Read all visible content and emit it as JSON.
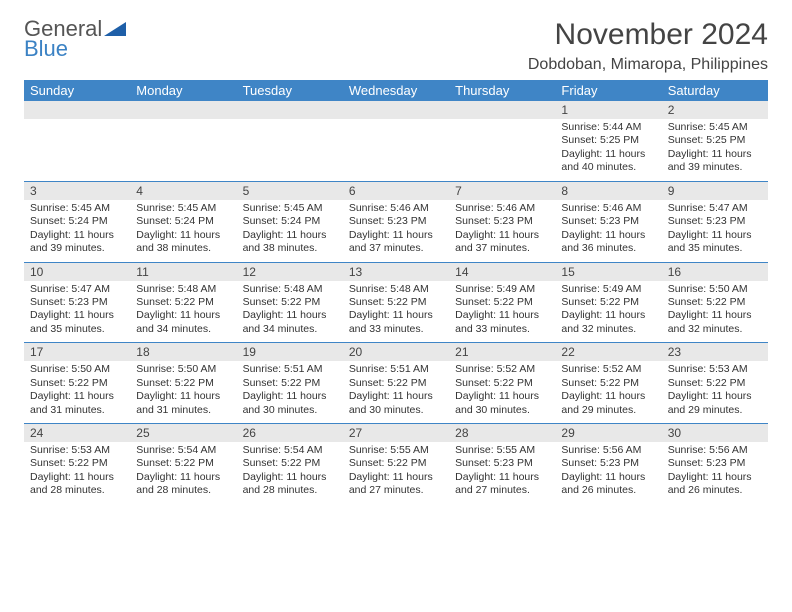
{
  "colors": {
    "header_bg": "#3f85c6",
    "header_text": "#ffffff",
    "daynum_bg": "#e8e8e8",
    "border": "#3f85c6",
    "logo_gray": "#555555",
    "logo_blue": "#3b82c4",
    "text": "#333333",
    "title": "#444444"
  },
  "fonts": {
    "family": "Arial",
    "title_size": 30,
    "subtitle_size": 16,
    "dayheader_size": 13,
    "daynum_size": 12,
    "detail_size": 10.5
  },
  "logo": {
    "line1": "General",
    "line2": "Blue"
  },
  "title": "November 2024",
  "subtitle": "Dobdoban, Mimaropa, Philippines",
  "day_names": [
    "Sunday",
    "Monday",
    "Tuesday",
    "Wednesday",
    "Thursday",
    "Friday",
    "Saturday"
  ],
  "weeks": [
    [
      {
        "num": "",
        "sunrise": "",
        "sunset": "",
        "daylight": ""
      },
      {
        "num": "",
        "sunrise": "",
        "sunset": "",
        "daylight": ""
      },
      {
        "num": "",
        "sunrise": "",
        "sunset": "",
        "daylight": ""
      },
      {
        "num": "",
        "sunrise": "",
        "sunset": "",
        "daylight": ""
      },
      {
        "num": "",
        "sunrise": "",
        "sunset": "",
        "daylight": ""
      },
      {
        "num": "1",
        "sunrise": "Sunrise: 5:44 AM",
        "sunset": "Sunset: 5:25 PM",
        "daylight": "Daylight: 11 hours and 40 minutes."
      },
      {
        "num": "2",
        "sunrise": "Sunrise: 5:45 AM",
        "sunset": "Sunset: 5:25 PM",
        "daylight": "Daylight: 11 hours and 39 minutes."
      }
    ],
    [
      {
        "num": "3",
        "sunrise": "Sunrise: 5:45 AM",
        "sunset": "Sunset: 5:24 PM",
        "daylight": "Daylight: 11 hours and 39 minutes."
      },
      {
        "num": "4",
        "sunrise": "Sunrise: 5:45 AM",
        "sunset": "Sunset: 5:24 PM",
        "daylight": "Daylight: 11 hours and 38 minutes."
      },
      {
        "num": "5",
        "sunrise": "Sunrise: 5:45 AM",
        "sunset": "Sunset: 5:24 PM",
        "daylight": "Daylight: 11 hours and 38 minutes."
      },
      {
        "num": "6",
        "sunrise": "Sunrise: 5:46 AM",
        "sunset": "Sunset: 5:23 PM",
        "daylight": "Daylight: 11 hours and 37 minutes."
      },
      {
        "num": "7",
        "sunrise": "Sunrise: 5:46 AM",
        "sunset": "Sunset: 5:23 PM",
        "daylight": "Daylight: 11 hours and 37 minutes."
      },
      {
        "num": "8",
        "sunrise": "Sunrise: 5:46 AM",
        "sunset": "Sunset: 5:23 PM",
        "daylight": "Daylight: 11 hours and 36 minutes."
      },
      {
        "num": "9",
        "sunrise": "Sunrise: 5:47 AM",
        "sunset": "Sunset: 5:23 PM",
        "daylight": "Daylight: 11 hours and 35 minutes."
      }
    ],
    [
      {
        "num": "10",
        "sunrise": "Sunrise: 5:47 AM",
        "sunset": "Sunset: 5:23 PM",
        "daylight": "Daylight: 11 hours and 35 minutes."
      },
      {
        "num": "11",
        "sunrise": "Sunrise: 5:48 AM",
        "sunset": "Sunset: 5:22 PM",
        "daylight": "Daylight: 11 hours and 34 minutes."
      },
      {
        "num": "12",
        "sunrise": "Sunrise: 5:48 AM",
        "sunset": "Sunset: 5:22 PM",
        "daylight": "Daylight: 11 hours and 34 minutes."
      },
      {
        "num": "13",
        "sunrise": "Sunrise: 5:48 AM",
        "sunset": "Sunset: 5:22 PM",
        "daylight": "Daylight: 11 hours and 33 minutes."
      },
      {
        "num": "14",
        "sunrise": "Sunrise: 5:49 AM",
        "sunset": "Sunset: 5:22 PM",
        "daylight": "Daylight: 11 hours and 33 minutes."
      },
      {
        "num": "15",
        "sunrise": "Sunrise: 5:49 AM",
        "sunset": "Sunset: 5:22 PM",
        "daylight": "Daylight: 11 hours and 32 minutes."
      },
      {
        "num": "16",
        "sunrise": "Sunrise: 5:50 AM",
        "sunset": "Sunset: 5:22 PM",
        "daylight": "Daylight: 11 hours and 32 minutes."
      }
    ],
    [
      {
        "num": "17",
        "sunrise": "Sunrise: 5:50 AM",
        "sunset": "Sunset: 5:22 PM",
        "daylight": "Daylight: 11 hours and 31 minutes."
      },
      {
        "num": "18",
        "sunrise": "Sunrise: 5:50 AM",
        "sunset": "Sunset: 5:22 PM",
        "daylight": "Daylight: 11 hours and 31 minutes."
      },
      {
        "num": "19",
        "sunrise": "Sunrise: 5:51 AM",
        "sunset": "Sunset: 5:22 PM",
        "daylight": "Daylight: 11 hours and 30 minutes."
      },
      {
        "num": "20",
        "sunrise": "Sunrise: 5:51 AM",
        "sunset": "Sunset: 5:22 PM",
        "daylight": "Daylight: 11 hours and 30 minutes."
      },
      {
        "num": "21",
        "sunrise": "Sunrise: 5:52 AM",
        "sunset": "Sunset: 5:22 PM",
        "daylight": "Daylight: 11 hours and 30 minutes."
      },
      {
        "num": "22",
        "sunrise": "Sunrise: 5:52 AM",
        "sunset": "Sunset: 5:22 PM",
        "daylight": "Daylight: 11 hours and 29 minutes."
      },
      {
        "num": "23",
        "sunrise": "Sunrise: 5:53 AM",
        "sunset": "Sunset: 5:22 PM",
        "daylight": "Daylight: 11 hours and 29 minutes."
      }
    ],
    [
      {
        "num": "24",
        "sunrise": "Sunrise: 5:53 AM",
        "sunset": "Sunset: 5:22 PM",
        "daylight": "Daylight: 11 hours and 28 minutes."
      },
      {
        "num": "25",
        "sunrise": "Sunrise: 5:54 AM",
        "sunset": "Sunset: 5:22 PM",
        "daylight": "Daylight: 11 hours and 28 minutes."
      },
      {
        "num": "26",
        "sunrise": "Sunrise: 5:54 AM",
        "sunset": "Sunset: 5:22 PM",
        "daylight": "Daylight: 11 hours and 28 minutes."
      },
      {
        "num": "27",
        "sunrise": "Sunrise: 5:55 AM",
        "sunset": "Sunset: 5:22 PM",
        "daylight": "Daylight: 11 hours and 27 minutes."
      },
      {
        "num": "28",
        "sunrise": "Sunrise: 5:55 AM",
        "sunset": "Sunset: 5:23 PM",
        "daylight": "Daylight: 11 hours and 27 minutes."
      },
      {
        "num": "29",
        "sunrise": "Sunrise: 5:56 AM",
        "sunset": "Sunset: 5:23 PM",
        "daylight": "Daylight: 11 hours and 26 minutes."
      },
      {
        "num": "30",
        "sunrise": "Sunrise: 5:56 AM",
        "sunset": "Sunset: 5:23 PM",
        "daylight": "Daylight: 11 hours and 26 minutes."
      }
    ]
  ]
}
